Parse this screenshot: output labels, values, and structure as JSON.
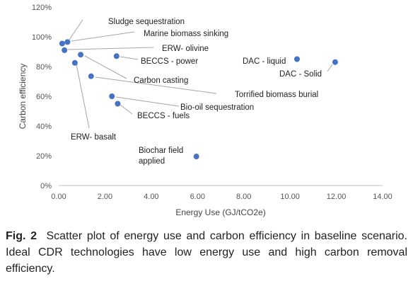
{
  "chart_data": {
    "type": "scatter",
    "xlabel": "Energy Use (GJ/tCO2e)",
    "ylabel": "Carbon efficiency",
    "xlim": [
      0,
      14
    ],
    "ylim": [
      0,
      1.2
    ],
    "x_ticks": [
      "0.00",
      "2.00",
      "4.00",
      "6.00",
      "8.00",
      "10.00",
      "12.00",
      "14.00"
    ],
    "y_ticks": [
      "0%",
      "20%",
      "40%",
      "60%",
      "80%",
      "100%",
      "120%"
    ],
    "marker_color": "#4472C4",
    "leader_color": "#A6A6A6",
    "grid": false,
    "points": [
      {
        "label": "Sludge sequestration",
        "x": 0.15,
        "y": 0.955
      },
      {
        "label": "Marine biomass sinking",
        "x": 0.38,
        "y": 0.965
      },
      {
        "label": "ERW- olivine",
        "x": 0.25,
        "y": 0.91
      },
      {
        "label": "BECCS - power",
        "x": 2.5,
        "y": 0.87
      },
      {
        "label": "DAC - liquid",
        "x": 10.3,
        "y": 0.85
      },
      {
        "label": "DAC - Solid",
        "x": 11.95,
        "y": 0.83
      },
      {
        "label": "Carbon casting",
        "x": 0.95,
        "y": 0.88
      },
      {
        "label": "ERW- basalt",
        "x": 0.7,
        "y": 0.825
      },
      {
        "label": "Torrified biomass burial",
        "x": 1.4,
        "y": 0.735
      },
      {
        "label": "Bio-oil sequestration",
        "x": 2.3,
        "y": 0.6
      },
      {
        "label": "BECCS - fuels",
        "x": 2.55,
        "y": 0.55
      },
      {
        "label": "Biochar field applied",
        "label_lines": [
          "Biochar field",
          "applied"
        ],
        "x": 5.95,
        "y": 0.195
      }
    ]
  },
  "caption": {
    "fig_label": "Fig. 2",
    "text": "Scatter plot of energy use and carbon efficiency in baseline scenario. Ideal CDR technologies have low energy use and high carbon removal efficiency."
  }
}
